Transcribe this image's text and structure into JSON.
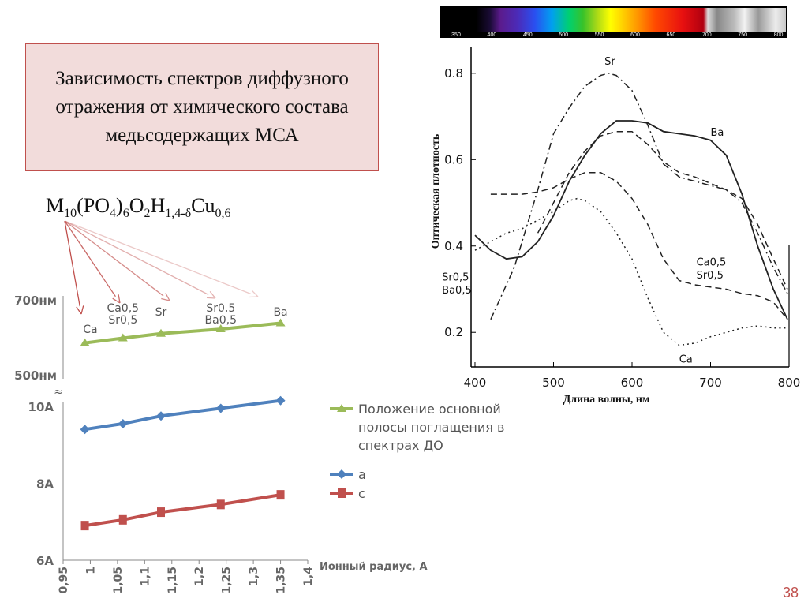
{
  "title": "Зависимость спектров диффузного отражения от химического состава медьсодержащих МСА",
  "formula": {
    "m": "M",
    "m_sub": "10",
    "po4": "(PO",
    "po4_sub": "4",
    "po4_close": ")",
    "po4_mult": "6",
    "o": "O",
    "o_sub": "2",
    "h": "H",
    "h_sub": "1,4-δ",
    "cu": "Cu",
    "cu_sub": "0,6"
  },
  "spectrum_bar": {
    "ticks": [
      "350",
      "400",
      "450",
      "500",
      "550",
      "600",
      "650",
      "700",
      "750",
      "800"
    ]
  },
  "page_number": "38",
  "colors": {
    "title_bg": "#f2dcdb",
    "title_border": "#c0504d",
    "arrow": "#c0504d",
    "green": "#9bbb59",
    "blue": "#4f81bd",
    "red": "#c0504d"
  },
  "chart_data": [
    {
      "type": "line",
      "title": "",
      "xlabel": "Длина волны, нм",
      "ylabel": "Оптическая плотность",
      "xlim": [
        395,
        800
      ],
      "ylim": [
        0.12,
        0.86
      ],
      "xticks": [
        400,
        500,
        600,
        700,
        800
      ],
      "yticks": [
        0.2,
        0.4,
        0.6,
        0.8
      ],
      "xtick_labels": [
        "400",
        "500",
        "600",
        "700",
        "800"
      ],
      "ytick_labels": [
        "0.2",
        "0.4",
        "0.6",
        "0.8"
      ],
      "series": [
        {
          "name": "Sr",
          "style": "dashdot",
          "points": [
            [
              420,
              0.23
            ],
            [
              450,
              0.35
            ],
            [
              480,
              0.53
            ],
            [
              500,
              0.66
            ],
            [
              520,
              0.72
            ],
            [
              540,
              0.77
            ],
            [
              560,
              0.795
            ],
            [
              570,
              0.8
            ],
            [
              580,
              0.795
            ],
            [
              600,
              0.76
            ],
            [
              620,
              0.68
            ],
            [
              640,
              0.59
            ],
            [
              660,
              0.56
            ],
            [
              680,
              0.55
            ],
            [
              700,
              0.54
            ],
            [
              720,
              0.53
            ],
            [
              740,
              0.5
            ],
            [
              760,
              0.43
            ],
            [
              780,
              0.35
            ],
            [
              798,
              0.29
            ]
          ]
        },
        {
          "name": "Ba",
          "style": "solid",
          "points": [
            [
              400,
              0.425
            ],
            [
              420,
              0.39
            ],
            [
              440,
              0.37
            ],
            [
              460,
              0.375
            ],
            [
              480,
              0.41
            ],
            [
              500,
              0.47
            ],
            [
              520,
              0.55
            ],
            [
              540,
              0.61
            ],
            [
              560,
              0.66
            ],
            [
              580,
              0.69
            ],
            [
              600,
              0.69
            ],
            [
              620,
              0.685
            ],
            [
              640,
              0.665
            ],
            [
              660,
              0.66
            ],
            [
              680,
              0.655
            ],
            [
              700,
              0.645
            ],
            [
              720,
              0.61
            ],
            [
              740,
              0.52
            ],
            [
              760,
              0.4
            ],
            [
              780,
              0.3
            ],
            [
              798,
              0.23
            ]
          ]
        },
        {
          "name": "Ca0,5 Sr0,5",
          "style": "dashed",
          "points": [
            [
              480,
              0.43
            ],
            [
              500,
              0.5
            ],
            [
              520,
              0.57
            ],
            [
              540,
              0.62
            ],
            [
              560,
              0.655
            ],
            [
              580,
              0.665
            ],
            [
              600,
              0.665
            ],
            [
              620,
              0.635
            ],
            [
              640,
              0.595
            ],
            [
              660,
              0.57
            ],
            [
              680,
              0.56
            ],
            [
              700,
              0.545
            ],
            [
              720,
              0.53
            ],
            [
              740,
              0.51
            ],
            [
              760,
              0.45
            ],
            [
              780,
              0.37
            ],
            [
              798,
              0.3
            ]
          ]
        },
        {
          "name": "Sr0,5 Ba0,5",
          "style": "dashed",
          "points": [
            [
              420,
              0.52
            ],
            [
              440,
              0.52
            ],
            [
              460,
              0.52
            ],
            [
              480,
              0.525
            ],
            [
              500,
              0.535
            ],
            [
              520,
              0.555
            ],
            [
              540,
              0.57
            ],
            [
              560,
              0.57
            ],
            [
              580,
              0.55
            ],
            [
              600,
              0.51
            ],
            [
              620,
              0.45
            ],
            [
              640,
              0.37
            ],
            [
              660,
              0.32
            ],
            [
              680,
              0.31
            ],
            [
              700,
              0.305
            ],
            [
              720,
              0.3
            ],
            [
              740,
              0.29
            ],
            [
              760,
              0.285
            ],
            [
              780,
              0.27
            ],
            [
              798,
              0.23
            ]
          ]
        },
        {
          "name": "Ca",
          "style": "dotted",
          "points": [
            [
              400,
              0.39
            ],
            [
              420,
              0.41
            ],
            [
              440,
              0.43
            ],
            [
              460,
              0.44
            ],
            [
              480,
              0.46
            ],
            [
              500,
              0.48
            ],
            [
              520,
              0.505
            ],
            [
              530,
              0.51
            ],
            [
              540,
              0.505
            ],
            [
              560,
              0.48
            ],
            [
              580,
              0.43
            ],
            [
              600,
              0.37
            ],
            [
              620,
              0.28
            ],
            [
              640,
              0.2
            ],
            [
              660,
              0.17
            ],
            [
              680,
              0.175
            ],
            [
              700,
              0.19
            ],
            [
              720,
              0.2
            ],
            [
              740,
              0.21
            ],
            [
              760,
              0.215
            ],
            [
              780,
              0.21
            ],
            [
              798,
              0.21
            ]
          ]
        }
      ],
      "labels": [
        {
          "text": "Sr",
          "x": 565,
          "y": 0.82
        },
        {
          "text": "Ba",
          "x": 700,
          "y": 0.655
        },
        {
          "text": "Ca0,5",
          "x": 682,
          "y": 0.355
        },
        {
          "text": "Sr0,5",
          "x": 682,
          "y": 0.325
        },
        {
          "text": "Sr0,5",
          "x": 358,
          "y": 0.32
        },
        {
          "text": "Ba0,5",
          "x": 358,
          "y": 0.29
        },
        {
          "text": "Ca",
          "x": 660,
          "y": 0.13
        }
      ]
    },
    {
      "type": "line",
      "xlabel": "Ионный радиус, А",
      "xlim": [
        0.95,
        1.4
      ],
      "xtick_labels": [
        "0,95",
        "1",
        "1,05",
        "1,1",
        "1,15",
        "1,2",
        "1,25",
        "1,3",
        "1,35",
        "1,4"
      ],
      "top_axis": {
        "ylim": [
          500,
          700
        ],
        "tick_labels": [
          "700нм",
          "500нм"
        ]
      },
      "bottom_axis": {
        "ylim": [
          6,
          10
        ],
        "tick_labels": [
          "10А",
          "8А",
          "6А"
        ]
      },
      "category_labels": [
        {
          "lines": [
            "Ca"
          ],
          "x": 1.0
        },
        {
          "lines": [
            "Ca0,5",
            "Sr0,5"
          ],
          "x": 1.06
        },
        {
          "lines": [
            "Sr"
          ],
          "x": 1.13
        },
        {
          "lines": [
            "Sr0,5",
            "Ba0,5"
          ],
          "x": 1.24
        },
        {
          "lines": [
            "Ba"
          ],
          "x": 1.35
        }
      ],
      "series": [
        {
          "name": "Положение основной полосы поглащения в спектрах ДО",
          "axis": "top",
          "x": [
            0.99,
            1.06,
            1.13,
            1.24,
            1.35
          ],
          "values": [
            585,
            598,
            610,
            622,
            638
          ]
        },
        {
          "name": "a",
          "axis": "bottom",
          "x": [
            0.99,
            1.06,
            1.13,
            1.24,
            1.35
          ],
          "values": [
            9.4,
            9.55,
            9.75,
            9.95,
            10.15
          ]
        },
        {
          "name": "c",
          "axis": "bottom",
          "x": [
            0.99,
            1.06,
            1.13,
            1.24,
            1.35
          ],
          "values": [
            6.9,
            7.05,
            7.25,
            7.45,
            7.7
          ]
        }
      ],
      "legend": {
        "position": "right",
        "items": [
          {
            "lines": [
              "Положение основной",
              "полосы поглащения в",
              "спектрах ДО"
            ],
            "color": "green"
          },
          {
            "lines": [
              "a"
            ],
            "color": "blue"
          },
          {
            "lines": [
              "c"
            ],
            "color": "red"
          }
        ]
      }
    }
  ]
}
